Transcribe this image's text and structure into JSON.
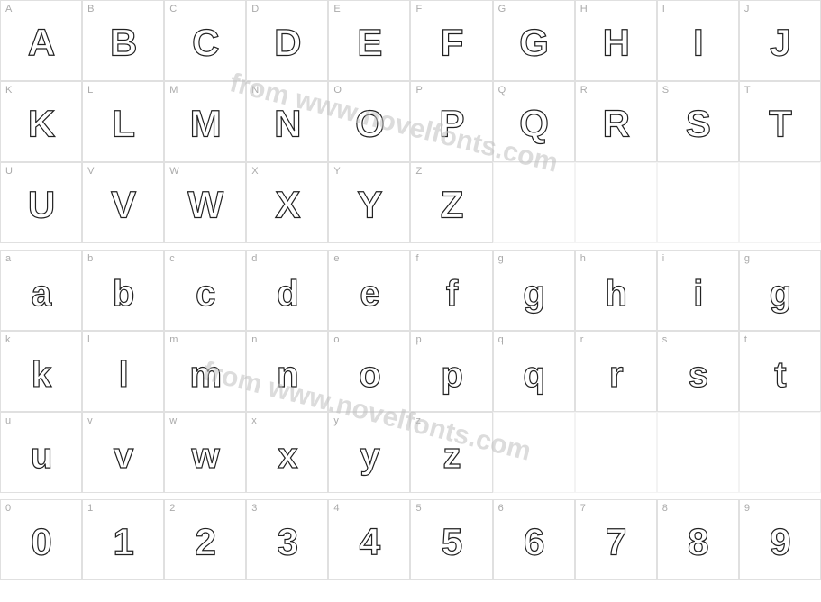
{
  "watermark_text": "from www.novelfonts.com",
  "colors": {
    "grid_border": "#e0e0e0",
    "label": "#aaaaaa",
    "glyph_stroke": "#222222",
    "glyph_fill": "#ffffff",
    "background": "#ffffff",
    "watermark": "#c0c0c0"
  },
  "rows": [
    {
      "type": "upper",
      "cells": [
        {
          "label": "A",
          "glyph": "A"
        },
        {
          "label": "B",
          "glyph": "B"
        },
        {
          "label": "C",
          "glyph": "C"
        },
        {
          "label": "D",
          "glyph": "D"
        },
        {
          "label": "E",
          "glyph": "E"
        },
        {
          "label": "F",
          "glyph": "F"
        },
        {
          "label": "G",
          "glyph": "G"
        },
        {
          "label": "H",
          "glyph": "H"
        },
        {
          "label": "I",
          "glyph": "I"
        },
        {
          "label": "J",
          "glyph": "J"
        }
      ]
    },
    {
      "type": "upper",
      "cells": [
        {
          "label": "K",
          "glyph": "K"
        },
        {
          "label": "L",
          "glyph": "L"
        },
        {
          "label": "M",
          "glyph": "M"
        },
        {
          "label": "N",
          "glyph": "N"
        },
        {
          "label": "O",
          "glyph": "O"
        },
        {
          "label": "P",
          "glyph": "P"
        },
        {
          "label": "Q",
          "glyph": "Q"
        },
        {
          "label": "R",
          "glyph": "R"
        },
        {
          "label": "S",
          "glyph": "S"
        },
        {
          "label": "T",
          "glyph": "T"
        }
      ]
    },
    {
      "type": "upper",
      "cells": [
        {
          "label": "U",
          "glyph": "U"
        },
        {
          "label": "V",
          "glyph": "V"
        },
        {
          "label": "W",
          "glyph": "W"
        },
        {
          "label": "X",
          "glyph": "X"
        },
        {
          "label": "Y",
          "glyph": "Y"
        },
        {
          "label": "Z",
          "glyph": "Z"
        },
        {
          "label": "",
          "glyph": "",
          "empty": true
        },
        {
          "label": "",
          "glyph": "",
          "empty": true
        },
        {
          "label": "",
          "glyph": "",
          "empty": true
        },
        {
          "label": "",
          "glyph": "",
          "empty": true
        }
      ]
    },
    {
      "type": "spacer"
    },
    {
      "type": "lower",
      "cells": [
        {
          "label": "a",
          "glyph": "a"
        },
        {
          "label": "b",
          "glyph": "b"
        },
        {
          "label": "c",
          "glyph": "c"
        },
        {
          "label": "d",
          "glyph": "d"
        },
        {
          "label": "e",
          "glyph": "e"
        },
        {
          "label": "f",
          "glyph": "f"
        },
        {
          "label": "g",
          "glyph": "g"
        },
        {
          "label": "h",
          "glyph": "h"
        },
        {
          "label": "i",
          "glyph": "i"
        },
        {
          "label": "g",
          "glyph": "g"
        }
      ]
    },
    {
      "type": "lower",
      "cells": [
        {
          "label": "k",
          "glyph": "k"
        },
        {
          "label": "l",
          "glyph": "l"
        },
        {
          "label": "m",
          "glyph": "m"
        },
        {
          "label": "n",
          "glyph": "n"
        },
        {
          "label": "o",
          "glyph": "o"
        },
        {
          "label": "p",
          "glyph": "p"
        },
        {
          "label": "q",
          "glyph": "q"
        },
        {
          "label": "r",
          "glyph": "r"
        },
        {
          "label": "s",
          "glyph": "s"
        },
        {
          "label": "t",
          "glyph": "t"
        }
      ]
    },
    {
      "type": "lower",
      "cells": [
        {
          "label": "u",
          "glyph": "u"
        },
        {
          "label": "v",
          "glyph": "v"
        },
        {
          "label": "w",
          "glyph": "w"
        },
        {
          "label": "x",
          "glyph": "x"
        },
        {
          "label": "y",
          "glyph": "y"
        },
        {
          "label": "z",
          "glyph": "z"
        },
        {
          "label": "",
          "glyph": "",
          "empty": true
        },
        {
          "label": "",
          "glyph": "",
          "empty": true
        },
        {
          "label": "",
          "glyph": "",
          "empty": true
        },
        {
          "label": "",
          "glyph": "",
          "empty": true
        }
      ]
    },
    {
      "type": "spacer"
    },
    {
      "type": "digit",
      "cells": [
        {
          "label": "0",
          "glyph": "0"
        },
        {
          "label": "1",
          "glyph": "1"
        },
        {
          "label": "2",
          "glyph": "2"
        },
        {
          "label": "3",
          "glyph": "3"
        },
        {
          "label": "4",
          "glyph": "4"
        },
        {
          "label": "5",
          "glyph": "5"
        },
        {
          "label": "6",
          "glyph": "6"
        },
        {
          "label": "7",
          "glyph": "7"
        },
        {
          "label": "8",
          "glyph": "8"
        },
        {
          "label": "9",
          "glyph": "9"
        }
      ]
    }
  ]
}
